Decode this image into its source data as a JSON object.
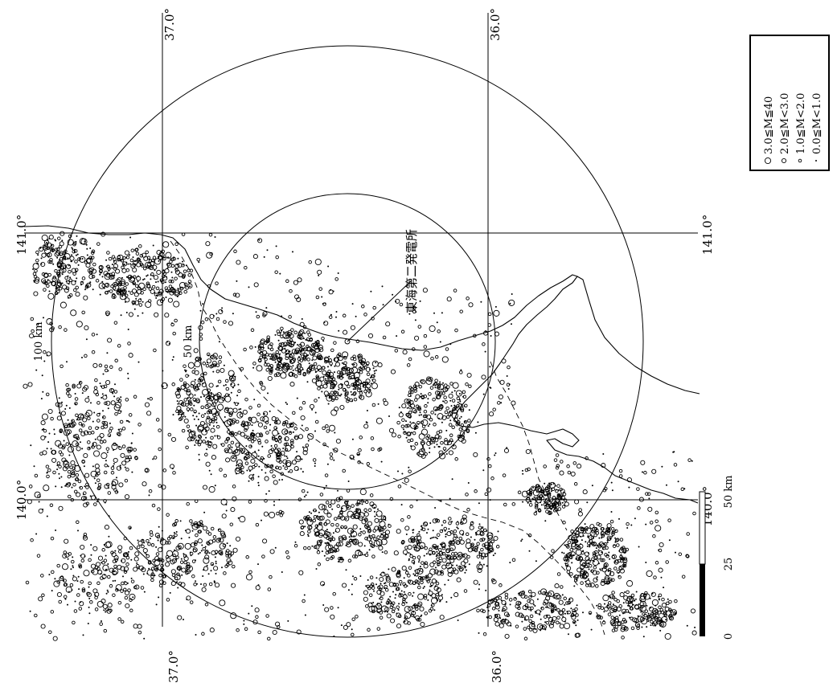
{
  "map": {
    "lat_labels": [
      {
        "id": "lat-37-top",
        "text": "37.0°"
      },
      {
        "id": "lat-36-top",
        "text": "36.0°"
      },
      {
        "id": "lat-37-bottom",
        "text": "37.0°"
      },
      {
        "id": "lat-36-bottom",
        "text": "36.0°"
      }
    ],
    "lon_labels": [
      {
        "id": "lon-141-left",
        "text": "141.0°"
      },
      {
        "id": "lon-141-right",
        "text": "141.0°"
      },
      {
        "id": "lon-140-left",
        "text": "140.0°"
      },
      {
        "id": "lon-140-right",
        "text": "140.0°"
      }
    ],
    "plant_label": "東海第二発電所",
    "ring_labels": {
      "outer": "100 km",
      "inner": "50 km"
    },
    "scale_bar": {
      "zero": "0",
      "mid": "25",
      "end": "50 km"
    }
  },
  "legend": {
    "items": [
      {
        "symbol": "large-circle",
        "text": "3.0≦M≦40"
      },
      {
        "symbol": "medium-circle",
        "text": "2.0≦M<3.0"
      },
      {
        "symbol": "small-circle",
        "text": "1.0≦M<2.0"
      },
      {
        "symbol": "dot",
        "text": "0.0≦M<1.0"
      }
    ]
  },
  "styling": {
    "ink": "#000000",
    "background": "#ffffff"
  }
}
